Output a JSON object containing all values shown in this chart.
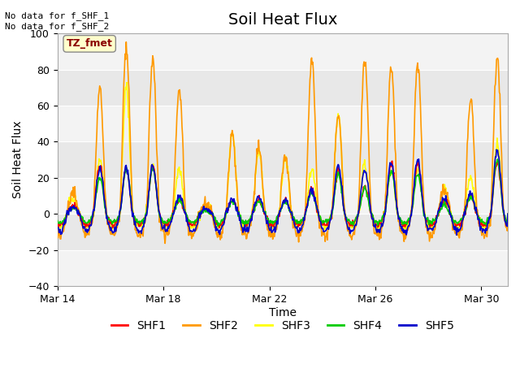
{
  "title": "Soil Heat Flux",
  "ylabel": "Soil Heat Flux",
  "xlabel": "Time",
  "top_left_text": "No data for f_SHF_1\nNo data for f_SHF_2",
  "box_label": "TZ_fmet",
  "ylim": [
    -40,
    100
  ],
  "yticks": [
    -40,
    -20,
    0,
    20,
    40,
    60,
    80,
    100
  ],
  "xtick_labels": [
    "Mar 14",
    "Mar 18",
    "Mar 22",
    "Mar 26",
    "Mar 30"
  ],
  "series_colors": {
    "SHF1": "#ff0000",
    "SHF2": "#ff9900",
    "SHF3": "#ffff00",
    "SHF4": "#00cc00",
    "SHF5": "#0000cc"
  },
  "background_color": "#ffffff",
  "plot_bg_color": "#e8e8e8",
  "n_points": 800,
  "title_fontsize": 14,
  "label_fontsize": 10,
  "tick_fontsize": 9,
  "day_amps_shf2": [
    12,
    70,
    93,
    87,
    70,
    5,
    45,
    37,
    33,
    87,
    55,
    85,
    82,
    84,
    15,
    63,
    87
  ],
  "day_amps_shf3": [
    8,
    30,
    70,
    26,
    25,
    4,
    45,
    35,
    30,
    25,
    54,
    28,
    25,
    25,
    14,
    20,
    38
  ],
  "day_amps_shf1": [
    5,
    27,
    25,
    26,
    8,
    3,
    8,
    8,
    8,
    14,
    24,
    15,
    28,
    28,
    8,
    10,
    28
  ],
  "day_amps_shf4": [
    3,
    20,
    25,
    25,
    8,
    2,
    7,
    7,
    7,
    12,
    22,
    14,
    24,
    22,
    5,
    9,
    30
  ],
  "day_amps_shf5": [
    4,
    25,
    26,
    27,
    10,
    3,
    8,
    9,
    8,
    14,
    27,
    25,
    28,
    30,
    9,
    12,
    35
  ],
  "n_days": 17,
  "night_amp": -12,
  "phase_shift": 0.35
}
